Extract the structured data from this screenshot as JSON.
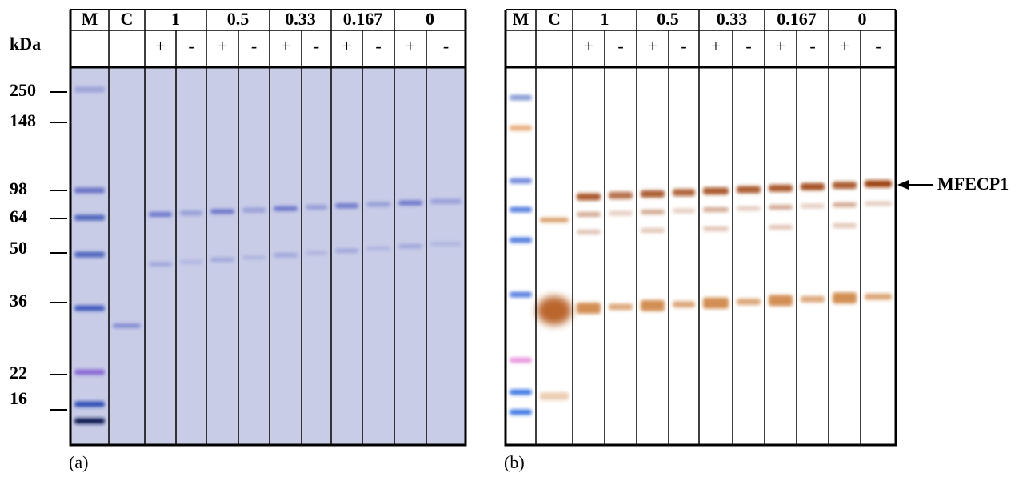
{
  "markers": {
    "unit": "kDa",
    "sizes": [
      "250",
      "148",
      "98",
      "64",
      "50",
      "36",
      "22",
      "16"
    ]
  },
  "panels": [
    {
      "label": "(a)",
      "lanes": [
        "M",
        "C"
      ],
      "groups": [
        "1",
        "0.5",
        "0.33",
        "0.167",
        "0"
      ],
      "signs": [
        "+",
        "-",
        "+",
        "-",
        "+",
        "-",
        "+",
        "-",
        "+",
        "-"
      ]
    },
    {
      "label": "(b)",
      "lanes": [
        "M",
        "C"
      ],
      "groups": [
        "1",
        "0.5",
        "0.33",
        "0.167",
        "0"
      ],
      "signs": [
        "+",
        "-",
        "+",
        "-",
        "+",
        "-",
        "+",
        "-",
        "+",
        "-"
      ]
    }
  ],
  "annotation": "MFECP1"
}
